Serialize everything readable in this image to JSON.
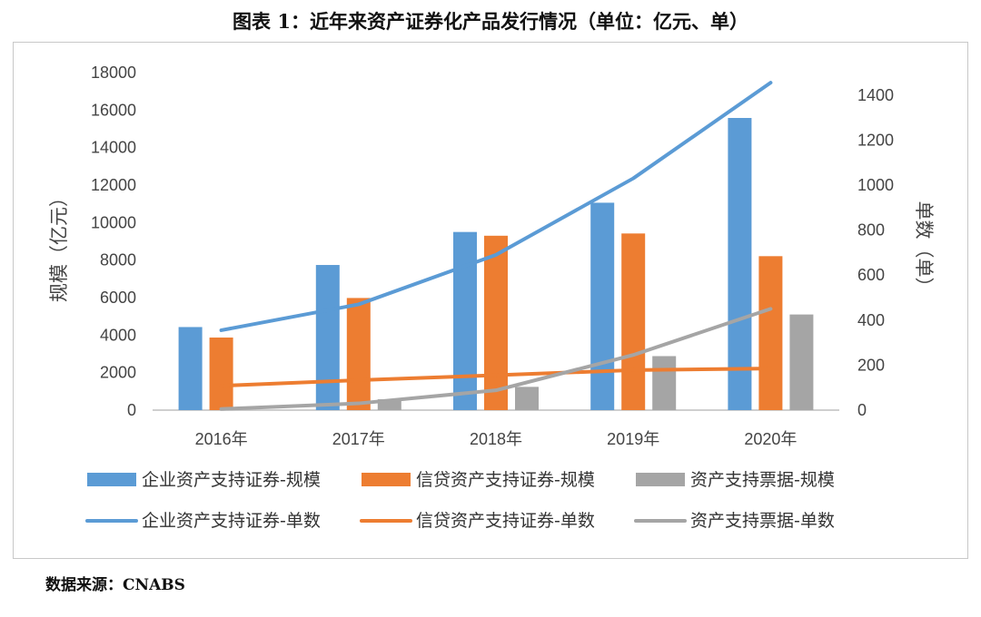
{
  "title": "图表 1：近年来资产证券化产品发行情况（单位：亿元、单）",
  "source": "数据来源：CNABS",
  "chart_data": {
    "type": "bar",
    "categories": [
      "2016年",
      "2017年",
      "2018年",
      "2019年",
      "2020年"
    ],
    "ylabel": "规模（亿元）",
    "y2label": "单数（单）",
    "ylim": [
      0,
      18000
    ],
    "yticks": [
      0,
      2000,
      4000,
      6000,
      8000,
      10000,
      12000,
      14000,
      16000,
      18000
    ],
    "y2lim": [
      0,
      1500
    ],
    "y2ticks": [
      0,
      200,
      400,
      600,
      800,
      1000,
      1200,
      1400
    ],
    "grid": false,
    "legend_position": "bottom",
    "bar_series": [
      {
        "name": "企业资产支持证券-规模",
        "color": "#5b9bd5",
        "values": [
          4430,
          7740,
          9500,
          11060,
          15580
        ]
      },
      {
        "name": "信贷资产支持证券-规模",
        "color": "#ed7d31",
        "values": [
          3870,
          5980,
          9300,
          9420,
          8210
        ]
      },
      {
        "name": "资产支持票据-规模",
        "color": "#a5a5a5",
        "values": [
          0,
          580,
          1240,
          2880,
          5100
        ]
      }
    ],
    "line_series": [
      {
        "name": "企业资产支持证券-单数",
        "color": "#5b9bd5",
        "values": [
          355,
          470,
          690,
          1030,
          1455
        ]
      },
      {
        "name": "信贷资产支持证券-单数",
        "color": "#ed7d31",
        "values": [
          108,
          133,
          155,
          178,
          185
        ]
      },
      {
        "name": "资产支持票据-单数",
        "color": "#a5a5a5",
        "values": [
          5,
          30,
          88,
          245,
          450
        ]
      }
    ]
  }
}
